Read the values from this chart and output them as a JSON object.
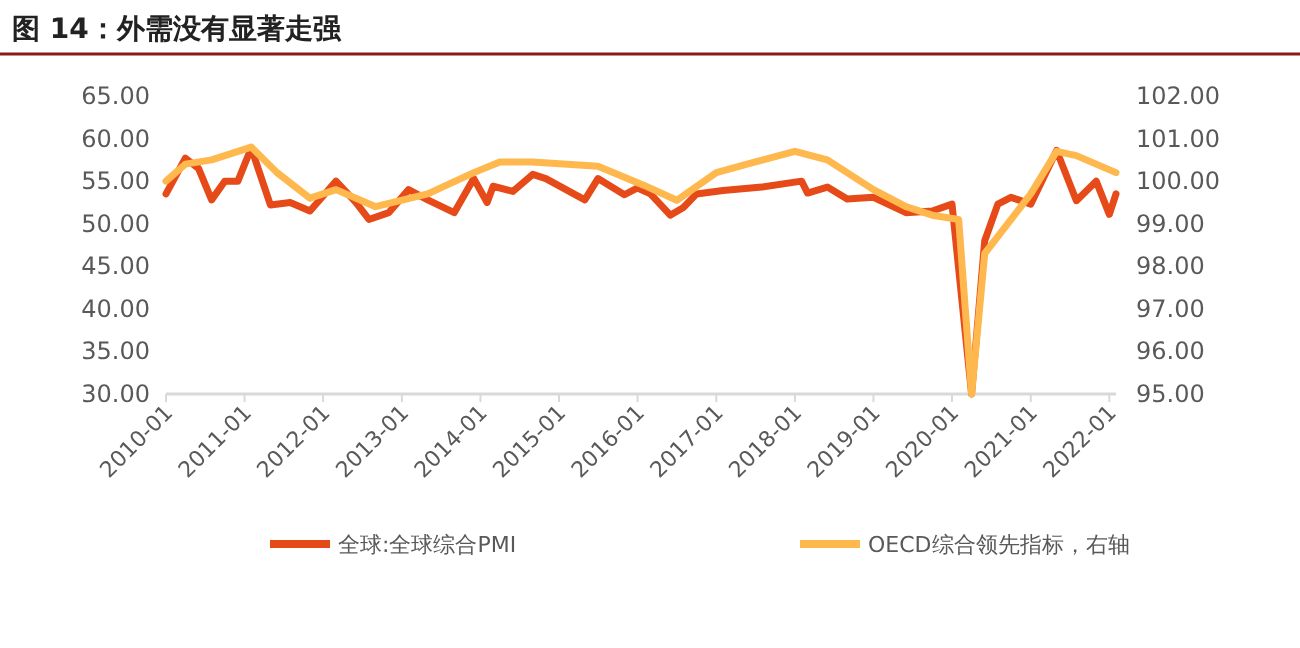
{
  "chart_data": {
    "type": "line",
    "title": "图 14：外需没有显著走强",
    "xlim": [
      "2010-01",
      "2022-02"
    ],
    "xticks": [
      {
        "value": "2010-01",
        "label": "2010-01"
      },
      {
        "value": "2011-01",
        "label": "2011-01"
      },
      {
        "value": "2012-01",
        "label": "2012-01"
      },
      {
        "value": "2013-01",
        "label": "2013-01"
      },
      {
        "value": "2014-01",
        "label": "2014-01"
      },
      {
        "value": "2015-01",
        "label": "2015-01"
      },
      {
        "value": "2016-01",
        "label": "2016-01"
      },
      {
        "value": "2017-01",
        "label": "2017-01"
      },
      {
        "value": "2018-01",
        "label": "2018-01"
      },
      {
        "value": "2019-01",
        "label": "2019-01"
      },
      {
        "value": "2020-01",
        "label": "2020-01"
      },
      {
        "value": "2021-01",
        "label": "2021-01"
      },
      {
        "value": "2022-01",
        "label": "2022-01"
      }
    ],
    "ylim": [
      30,
      65
    ],
    "yticks": [
      {
        "value": 30,
        "label": "30.00"
      },
      {
        "value": 35,
        "label": "35.00"
      },
      {
        "value": 40,
        "label": "40.00"
      },
      {
        "value": 45,
        "label": "45.00"
      },
      {
        "value": 50,
        "label": "50.00"
      },
      {
        "value": 55,
        "label": "55.00"
      },
      {
        "value": 60,
        "label": "60.00"
      },
      {
        "value": 65,
        "label": "65.00"
      }
    ],
    "y2lim": [
      95,
      102
    ],
    "y2ticks": [
      {
        "value": 95,
        "label": "95.00"
      },
      {
        "value": 96,
        "label": "96.00"
      },
      {
        "value": 97,
        "label": "97.00"
      },
      {
        "value": 98,
        "label": "98.00"
      },
      {
        "value": 99,
        "label": "99.00"
      },
      {
        "value": 100,
        "label": "100.00"
      },
      {
        "value": 101,
        "label": "101.00"
      },
      {
        "value": 102,
        "label": "102.00"
      }
    ],
    "grid": false,
    "legend": "bottom",
    "marker": "none",
    "line_style": "solid",
    "series": [
      {
        "name": "全球:全球综合PMI",
        "color": "#e64a19",
        "x": [
          "2010-01",
          "2010-04",
          "2010-06",
          "2010-08",
          "2010-10",
          "2010-12",
          "2011-02",
          "2011-05",
          "2011-08",
          "2011-11",
          "2012-03",
          "2012-06",
          "2012-08",
          "2012-11",
          "2013-02",
          "2013-05",
          "2013-09",
          "2013-12",
          "2014-02",
          "2014-03",
          "2014-06",
          "2014-09",
          "2014-11",
          "2015-05",
          "2015-07",
          "2015-11",
          "2016-01",
          "2016-03",
          "2016-06",
          "2016-08",
          "2016-10",
          "2017-02",
          "2017-08",
          "2018-02",
          "2018-03",
          "2018-06",
          "2018-09",
          "2019-01",
          "2019-06",
          "2019-10",
          "2020-01",
          "2020-04",
          "2020-06",
          "2020-08",
          "2020-10",
          "2021-01",
          "2021-05",
          "2021-08",
          "2021-11",
          "2022-01",
          "2022-02"
        ],
        "values": [
          53.5,
          57.7,
          56.5,
          52.8,
          55,
          55,
          58.9,
          52.2,
          52.5,
          51.5,
          55,
          52.5,
          50.5,
          51.3,
          54,
          52.8,
          51.3,
          55.3,
          52.5,
          54.4,
          53.8,
          55.8,
          55.3,
          52.8,
          55.3,
          53.4,
          54.2,
          53.5,
          51,
          51.9,
          53.5,
          53.9,
          54.3,
          55,
          53.6,
          54.3,
          52.9,
          53.1,
          51.3,
          51.5,
          52.3,
          30,
          48,
          52.3,
          53.1,
          52.3,
          58.6,
          52.7,
          55,
          51.1,
          53.5
        ]
      },
      {
        "name": "OECD综合领先指标，右轴",
        "color": "#ffb84d",
        "axis": "y2",
        "x": [
          "2010-01",
          "2010-04",
          "2010-08",
          "2011-02",
          "2011-06",
          "2011-11",
          "2012-03",
          "2012-09",
          "2013-05",
          "2013-12",
          "2014-04",
          "2014-09",
          "2015-07",
          "2016-02",
          "2016-07",
          "2017-01",
          "2017-07",
          "2018-01",
          "2018-06",
          "2019-01",
          "2019-06",
          "2019-10",
          "2020-02",
          "2020-04",
          "2020-06",
          "2020-09",
          "2021-01",
          "2021-05",
          "2021-08",
          "2022-02"
        ],
        "values": [
          100,
          100.4,
          100.5,
          100.8,
          100.2,
          99.6,
          99.8,
          99.4,
          99.7,
          100.2,
          100.45,
          100.45,
          100.35,
          99.9,
          99.55,
          100.2,
          100.45,
          100.7,
          100.5,
          99.8,
          99.4,
          99.2,
          99.1,
          95,
          98.3,
          98.9,
          99.7,
          100.7,
          100.6,
          100.2
        ]
      }
    ]
  }
}
